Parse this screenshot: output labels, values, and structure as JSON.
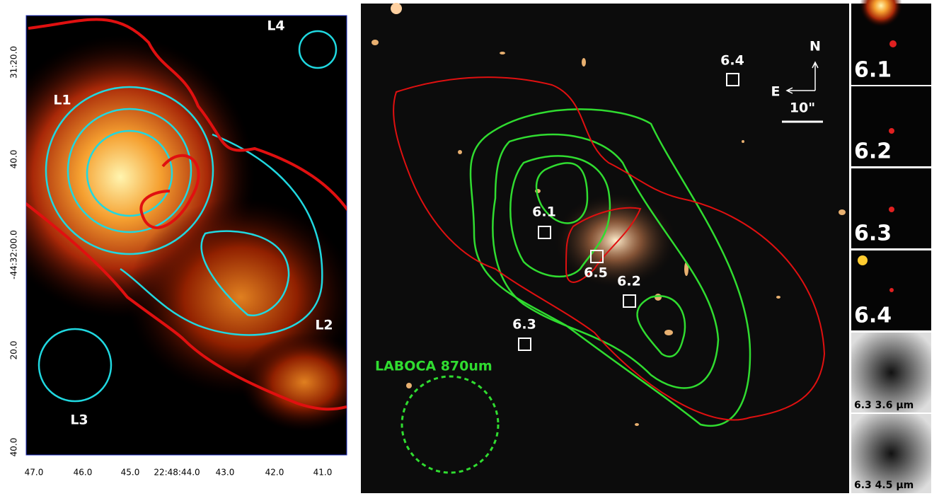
{
  "left_panel": {
    "region_labels": [
      "L1",
      "L2",
      "L3",
      "L4"
    ],
    "x_ticks": [
      "47.0",
      "46.0",
      "45.0",
      "22:48:44.0",
      "43.0",
      "42.0",
      "41.0"
    ],
    "y_ticks": [
      "31:20.0",
      "40.0",
      "-44:32:00.0",
      "20.0",
      "40.0"
    ]
  },
  "middle_panel": {
    "sources": [
      "6.1",
      "6.2",
      "6.3",
      "6.4",
      "6.5"
    ],
    "compass": {
      "north": "N",
      "east": "E"
    },
    "scale_bar": "10\"",
    "laboca_label": "LABOCA 870um"
  },
  "thumbnails": [
    "6.1",
    "6.2",
    "6.3",
    "6.4",
    "6.3 3.6 µm",
    "6.3 4.5 µm"
  ]
}
